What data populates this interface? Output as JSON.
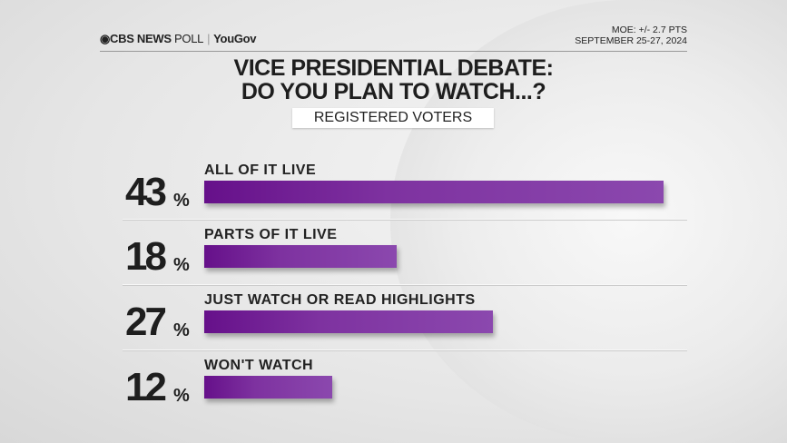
{
  "header": {
    "brand": "CBS NEWS",
    "poll": "POLL",
    "partner": "YouGov",
    "moe": "MOE: +/- 2.7 PTS",
    "dates": "SEPTEMBER 25-27, 2024"
  },
  "chart_data": {
    "type": "bar",
    "title": [
      "VICE PRESIDENTIAL DEBATE:",
      "DO YOU PLAN TO WATCH...?"
    ],
    "subtitle": "REGISTERED VOTERS",
    "categories": [
      "ALL OF IT LIVE",
      "PARTS OF IT LIVE",
      "JUST WATCH OR READ HIGHLIGHTS",
      "WON'T WATCH"
    ],
    "values": [
      43,
      18,
      27,
      12
    ],
    "unit": "%",
    "orientation": "horizontal",
    "bar_color": "#7e32a0"
  }
}
